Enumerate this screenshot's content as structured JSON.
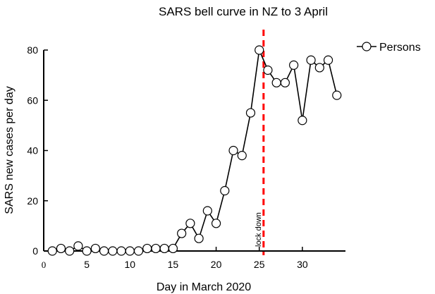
{
  "chart_data": {
    "type": "line",
    "title": "SARS bell curve in NZ to 3 April",
    "xlabel": "Day in March 2020",
    "ylabel": "SARS new cases per day",
    "xlim": [
      0,
      35
    ],
    "ylim": [
      0,
      80
    ],
    "x_ticks": [
      0,
      5,
      10,
      15,
      20,
      25,
      30
    ],
    "x_tick_labels": [
      "0",
      "5",
      "10",
      "15",
      "20",
      "25",
      "30"
    ],
    "y_ticks": [
      0,
      20,
      40,
      60,
      80
    ],
    "y_tick_labels": [
      "0",
      "20",
      "40",
      "60",
      "80"
    ],
    "grid": false,
    "legend_position": "top-right",
    "series": [
      {
        "name": "Persons",
        "marker": "open-circle",
        "color": "#000000",
        "x": [
          1,
          2,
          3,
          4,
          5,
          6,
          7,
          8,
          9,
          10,
          11,
          12,
          13,
          14,
          15,
          16,
          17,
          18,
          19,
          20,
          21,
          22,
          23,
          24,
          25,
          26,
          27,
          28,
          29,
          30,
          31,
          32,
          33,
          34
        ],
        "y": [
          0,
          1,
          0,
          2,
          0,
          1,
          0,
          0,
          0,
          0,
          0,
          1,
          1,
          1,
          1,
          7,
          11,
          5,
          16,
          11,
          24,
          40,
          38,
          55,
          80,
          72,
          67,
          67,
          74,
          52,
          76,
          73,
          76,
          62
        ]
      }
    ],
    "annotations": [
      {
        "type": "vertical-line",
        "x": 25.5,
        "color": "#ff0000",
        "style": "dashed",
        "label": "lock down"
      }
    ]
  }
}
